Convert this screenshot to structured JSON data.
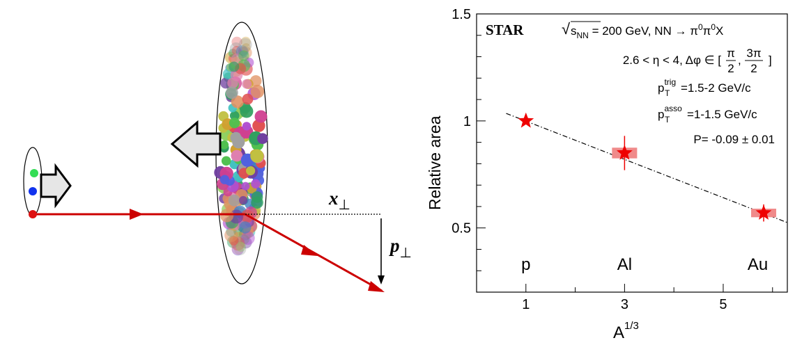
{
  "diagram": {
    "x_perp_base": "x",
    "perp_sub": "⊥",
    "p_perp_base": "p",
    "colors": {
      "beam": "#cc0000",
      "proton_green": "#33dd55",
      "proton_blue": "#1133ee",
      "proton_red": "#dd1111",
      "arrow_fill": "#e6e6e6"
    }
  },
  "chart_data": {
    "type": "scatter",
    "experiment_label": "STAR",
    "info_lines": {
      "sqrt_prefix": "√",
      "sqrt_s": "s",
      "sqrt_sub": "NN",
      "energy_text": " = 200 GeV, NN → π",
      "pi_sup_1": "0",
      "pi_mid": "π",
      "pi_sup_2": "0",
      "pi_tail": "X",
      "eta_range": "2.6 < η < 4, Δφ ∈ [",
      "frac1_num": "π",
      "frac1_den": "2",
      "frac_sep": ",",
      "frac2_num": "3π",
      "frac2_den": "2",
      "bracket_close": "]",
      "pt_symbol": "p",
      "pt_sub": "T",
      "pt_trig_sup": "trig",
      "pt_trig_range": "=1.5-2 GeV/c",
      "pt_asso_sup": "asso",
      "pt_asso_range": "=1-1.5 GeV/c",
      "fit_result": "P= -0.09 ± 0.01"
    },
    "xlabel_base": "A",
    "xlabel_sup": "1/3",
    "ylabel": "Relative area",
    "xlim": [
      0.0,
      6.3
    ],
    "ylim": [
      0.2,
      1.5
    ],
    "x_ticks": [
      {
        "value": 1,
        "label": "1"
      },
      {
        "value": 3,
        "label": "3"
      },
      {
        "value": 5,
        "label": "5"
      }
    ],
    "x_minor_ticks": [
      2,
      4,
      6
    ],
    "y_ticks": [
      {
        "value": 0.5,
        "label": "0.5"
      },
      {
        "value": 1.0,
        "label": "1"
      },
      {
        "value": 1.5,
        "label": "1.5"
      }
    ],
    "y_minor_step": 0.1,
    "grid": false,
    "points": [
      {
        "name": "p",
        "x": 1.0,
        "y": 1.0,
        "err": 0.0,
        "sys": 0.0
      },
      {
        "name": "Al",
        "x": 3.0,
        "y": 0.85,
        "err": 0.08,
        "sys": 0.025
      },
      {
        "name": "Au",
        "x": 5.82,
        "y": 0.57,
        "err": 0.04,
        "sys": 0.02
      }
    ],
    "nucleus_labels": [
      {
        "text": "p",
        "x": 1.0
      },
      {
        "text": "Al",
        "x": 3.0
      },
      {
        "text": "Au",
        "x": 5.7
      }
    ],
    "nucleus_label_y": 0.33,
    "fit_line": {
      "x": [
        0.6,
        6.3
      ],
      "y": [
        1.035,
        0.525
      ]
    },
    "marker_color": "#ee0000",
    "sys_color": "#f08a8a"
  }
}
